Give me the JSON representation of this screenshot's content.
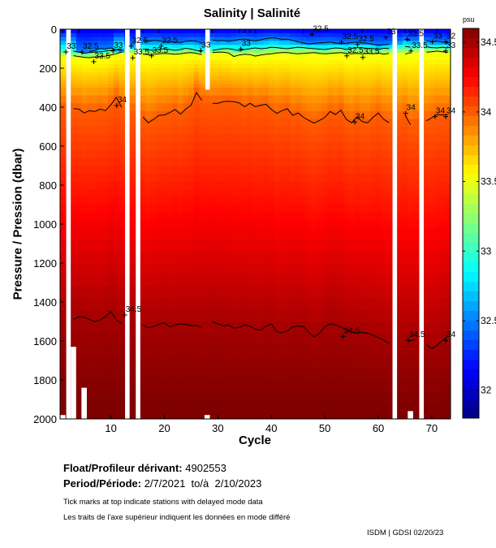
{
  "chart_data": {
    "type": "heatmap",
    "title": "Salinity | Salinité",
    "xlabel": "Cycle",
    "ylabel": "Pressure / Pression (dbar)",
    "xlim": [
      0.5,
      73.5
    ],
    "ylim": [
      2000,
      0
    ],
    "x_ticks": [
      10,
      20,
      30,
      40,
      50,
      60,
      70
    ],
    "y_ticks": [
      0,
      200,
      400,
      600,
      800,
      1000,
      1200,
      1400,
      1600,
      1800,
      2000
    ],
    "colorbar": {
      "unit": "psu",
      "range": [
        31.8,
        34.6
      ],
      "ticks": [
        "32",
        "32.5",
        "33",
        "33.5",
        "34",
        "34.5"
      ],
      "tick_values": [
        32,
        32.5,
        33,
        33.5,
        34,
        34.5
      ]
    },
    "missing_cycles": [
      2,
      13,
      15,
      63,
      68
    ],
    "partial_profiles": [
      {
        "cycle": 1,
        "max_pressure": 1980
      },
      {
        "cycle": 3,
        "max_pressure": 1630
      },
      {
        "cycle": 5,
        "max_pressure": 1840
      },
      {
        "cycle": 28,
        "max_pressure": 1980,
        "gap_top": 0,
        "gap_bottom": 310
      },
      {
        "cycle": 66,
        "max_pressure": 1960
      }
    ],
    "contours": [
      {
        "level": "32.5",
        "value": 32.5,
        "label": "32.5",
        "pressures": [
          null,
          null,
          null,
          null,
          null,
          115,
          108,
          100,
          102,
          96,
          105,
          110,
          null,
          null,
          null,
          60,
          62,
          58,
          60,
          64,
          62,
          66,
          68,
          62,
          60,
          62,
          70,
          null,
          55,
          60,
          58,
          62,
          58,
          52,
          50,
          56,
          60,
          54,
          48,
          44,
          46,
          52,
          50,
          58,
          64,
          70,
          76,
          72,
          70,
          68,
          66,
          70,
          74,
          72,
          68,
          66,
          70,
          72,
          78,
          82,
          80,
          78,
          null,
          null,
          52,
          58,
          null,
          null,
          60,
          64,
          62,
          66,
          70
        ]
      },
      {
        "level": "33",
        "value": 33,
        "label": "33",
        "pressures": [
          110,
          null,
          112,
          118,
          124,
          120,
          118,
          116,
          112,
          108,
          104,
          100,
          null,
          null,
          null,
          102,
          106,
          108,
          104,
          100,
          104,
          108,
          104,
          98,
          102,
          108,
          116,
          null,
          108,
          104,
          100,
          100,
          104,
          110,
          104,
          100,
          96,
          100,
          98,
          92,
          94,
          98,
          100,
          96,
          92,
          94,
          98,
          100,
          102,
          104,
          100,
          96,
          98,
          104,
          100,
          94,
          96,
          98,
          100,
          104,
          98,
          100,
          null,
          null,
          88,
          92,
          null,
          null,
          90,
          94,
          96,
          92,
          96
        ]
      },
      {
        "level": "33.5",
        "value": 33.5,
        "label": "33.5",
        "pressures": [
          132,
          null,
          136,
          140,
          144,
          146,
          142,
          140,
          138,
          132,
          126,
          118,
          null,
          null,
          null,
          128,
          130,
          128,
          126,
          124,
          126,
          128,
          126,
          122,
          120,
          124,
          130,
          null,
          120,
          118,
          118,
          122,
          140,
          132,
          128,
          130,
          138,
          132,
          128,
          126,
          122,
          120,
          120,
          124,
          126,
          124,
          122,
          120,
          124,
          126,
          124,
          122,
          120,
          124,
          126,
          124,
          126,
          124,
          126,
          122,
          128,
          124,
          null,
          null,
          128,
          120,
          null,
          null,
          118,
          116,
          112,
          116,
          120
        ]
      },
      {
        "level": "34",
        "value": 34,
        "label": "34",
        "pressures": [
          405,
          null,
          408,
          410,
          430,
          418,
          422,
          410,
          418,
          388,
          350,
          400,
          null,
          null,
          null,
          450,
          480,
          462,
          442,
          440,
          428,
          412,
          436,
          410,
          390,
          325,
          365,
          null,
          380,
          380,
          372,
          370,
          372,
          378,
          398,
          380,
          398,
          390,
          385,
          412,
          432,
          418,
          408,
          442,
          430,
          452,
          468,
          482,
          468,
          452,
          422,
          438,
          415,
          462,
          480,
          450,
          474,
          480,
          452,
          430,
          462,
          480,
          null,
          null,
          440,
          490,
          null,
          null,
          470,
          454,
          438,
          440,
          438
        ]
      },
      {
        "level": "34.5",
        "value": 34.5,
        "label": "34.5",
        "pressures": [
          1510,
          null,
          1490,
          1475,
          1478,
          1490,
          1500,
          1492,
          1474,
          1450,
          1490,
          1510,
          null,
          null,
          null,
          1518,
          1532,
          1526,
          1514,
          1506,
          1528,
          1518,
          1512,
          1516,
          1522,
          1520,
          1530,
          null,
          1500,
          1512,
          1522,
          1518,
          1534,
          1530,
          1518,
          1524,
          1540,
          1544,
          1524,
          1512,
          1552,
          1558,
          1548,
          1528,
          1524,
          1526,
          1556,
          1580,
          1560,
          1528,
          1512,
          1518,
          1528,
          1542,
          1552,
          1560,
          1556,
          1560,
          1570,
          1582,
          1596,
          1612,
          null,
          null,
          1594,
          1600,
          1590,
          null,
          1618,
          1640,
          1622,
          1598,
          1576
        ]
      }
    ],
    "contour_labels": [
      {
        "text": "33",
        "cycle": 1.6,
        "pressure": 100
      },
      {
        "text": "32.5",
        "cycle": 4.6,
        "pressure": 100
      },
      {
        "text": "33",
        "cycle": 10.4,
        "pressure": 95
      },
      {
        "text": "33.5",
        "cycle": 6.8,
        "pressure": 150
      },
      {
        "text": "32.5",
        "cycle": 13.8,
        "pressure": 70
      },
      {
        "text": "33.5",
        "cycle": 14.1,
        "pressure": 130
      },
      {
        "text": "32.5",
        "cycle": 19.4,
        "pressure": 70
      },
      {
        "text": "33.5",
        "cycle": 17.6,
        "pressure": 120
      },
      {
        "text": "33",
        "cycle": 26.8,
        "pressure": 93
      },
      {
        "text": "33",
        "cycle": 34.3,
        "pressure": 85
      },
      {
        "text": "32.5",
        "cycle": 47.6,
        "pressure": 10
      },
      {
        "text": "32.5",
        "cycle": 53.1,
        "pressure": 50
      },
      {
        "text": "32.5",
        "cycle": 54.1,
        "pressure": 120
      },
      {
        "text": "32.5",
        "cycle": 56.1,
        "pressure": 62
      },
      {
        "text": "33.5",
        "cycle": 57.1,
        "pressure": 128
      },
      {
        "text": "33",
        "cycle": 61.4,
        "pressure": 25
      },
      {
        "text": "33.5",
        "cycle": 65.4,
        "pressure": 35
      },
      {
        "text": "33.5",
        "cycle": 66.1,
        "pressure": 95
      },
      {
        "text": "33",
        "cycle": 70.1,
        "pressure": 48
      },
      {
        "text": "32",
        "cycle": 72.6,
        "pressure": 48
      },
      {
        "text": "33",
        "cycle": 72.6,
        "pressure": 95
      },
      {
        "text": "34",
        "cycle": 11.1,
        "pressure": 375
      },
      {
        "text": "34",
        "cycle": 55.6,
        "pressure": 460
      },
      {
        "text": "34",
        "cycle": 65.1,
        "pressure": 415
      },
      {
        "text": "34",
        "cycle": 70.6,
        "pressure": 432
      },
      {
        "text": "34",
        "cycle": 72.6,
        "pressure": 432
      },
      {
        "text": "34.5",
        "cycle": 12.6,
        "pressure": 1450
      },
      {
        "text": "34.5",
        "cycle": 53.4,
        "pressure": 1560
      },
      {
        "text": "34.5",
        "cycle": 65.6,
        "pressure": 1580
      },
      {
        "text": "34",
        "cycle": 72.6,
        "pressure": 1580
      }
    ],
    "delayed_mode_cycles": [
      1,
      4,
      16,
      19,
      29,
      34,
      35,
      36,
      37,
      46,
      57,
      65,
      71
    ]
  },
  "footer": {
    "float_label": "Float/Profileur dérivant:",
    "float_id": "4902553",
    "period_label": "Period/Période:",
    "period_start": "2/7/2021",
    "period_to": "to/à",
    "period_end": "2/10/2023",
    "note_en": "Tick marks at top indicate stations with delayed mode data",
    "note_fr": "Les traits de l'axe supérieur indiquent les données en mode différé",
    "credit": "ISDM | GDSI  02/20/23"
  }
}
